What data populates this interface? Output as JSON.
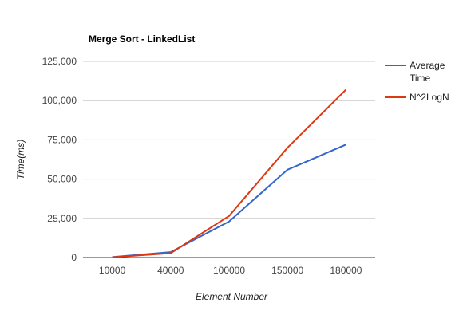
{
  "chart_data": {
    "type": "line",
    "title": "Merge Sort - LinkedList",
    "xlabel": "Element Number",
    "ylabel": "Time(ms)",
    "categories": [
      "10000",
      "40000",
      "100000",
      "150000",
      "180000"
    ],
    "y_ticks": [
      "0",
      "25,000",
      "50,000",
      "75,000",
      "100,000",
      "125,000"
    ],
    "y_tick_values": [
      0,
      25000,
      50000,
      75000,
      100000,
      125000
    ],
    "ylim": [
      0,
      125000
    ],
    "grid": true,
    "legend_position": "right",
    "series": [
      {
        "name_lines": [
          "Average",
          "Time"
        ],
        "color": "#3366cc",
        "values": [
          300,
          3500,
          23000,
          56000,
          72000
        ]
      },
      {
        "name_lines": [
          "N^2LogN"
        ],
        "color": "#dc3912",
        "values": [
          200,
          2800,
          26500,
          70000,
          107000
        ]
      }
    ]
  }
}
